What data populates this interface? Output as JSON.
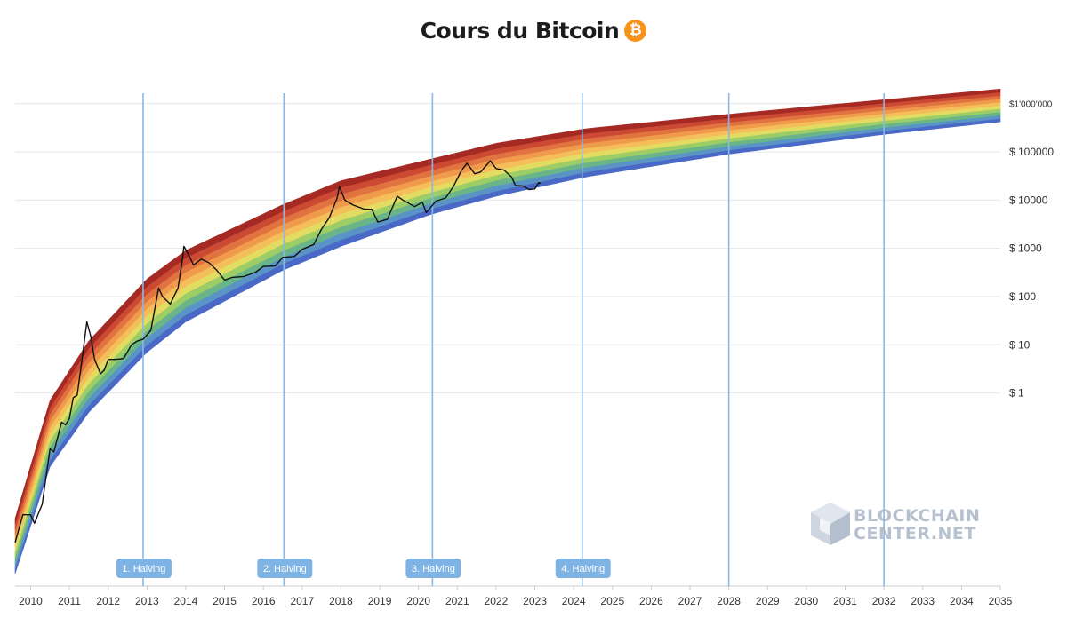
{
  "header": {
    "title": "Cours du Bitcoin",
    "icon": "bitcoin-icon",
    "icon_glyph": "₿"
  },
  "watermark": {
    "line1": "BLOCKCHAIN",
    "line2": "CENTER.NET",
    "icon": "cube-logo-icon"
  },
  "colors": {
    "bands": [
      "#4a68c6",
      "#5a94c7",
      "#69b489",
      "#9ccd66",
      "#e3dc62",
      "#f4bf5b",
      "#f09a4b",
      "#e07340",
      "#cc4a34",
      "#a52a23"
    ],
    "halving_line": "#8ab8e6",
    "price_line": "#111111",
    "grid": "#e6e6e6"
  },
  "chart_data": {
    "type": "area",
    "title": "Cours du Bitcoin",
    "xlabel": "",
    "ylabel": "",
    "y_scale": "log",
    "xlim": [
      2009.6,
      2035.0
    ],
    "ylim": [
      0.0001,
      2500000
    ],
    "x_ticks": [
      "2010",
      "2011",
      "2012",
      "2013",
      "2014",
      "2015",
      "2016",
      "2017",
      "2018",
      "2019",
      "2020",
      "2021",
      "2022",
      "2023",
      "2024",
      "2025",
      "2026",
      "2027",
      "2028",
      "2029",
      "2030",
      "2031",
      "2032",
      "2033",
      "2034",
      "2035"
    ],
    "y_ticks": [
      {
        "value": 1000000,
        "label": "$1'000'000"
      },
      {
        "value": 100000,
        "label": "$ 100000"
      },
      {
        "value": 10000,
        "label": "$ 10000"
      },
      {
        "value": 1000,
        "label": "$ 1000"
      },
      {
        "value": 100,
        "label": "$ 100"
      },
      {
        "value": 10,
        "label": "$ 10"
      },
      {
        "value": 1,
        "label": "$ 1"
      }
    ],
    "rainbow": {
      "band_count": 10,
      "boundary_samples": [
        {
          "x": 2009.6,
          "lower": 0.00018,
          "upper": 0.0025
        },
        {
          "x": 2010.5,
          "lower": 0.03,
          "upper": 0.7
        },
        {
          "x": 2011.5,
          "lower": 0.4,
          "upper": 12
        },
        {
          "x": 2013.0,
          "lower": 7,
          "upper": 230
        },
        {
          "x": 2014.0,
          "lower": 30,
          "upper": 900
        },
        {
          "x": 2016.5,
          "lower": 350,
          "upper": 8000
        },
        {
          "x": 2018.0,
          "lower": 1100,
          "upper": 25000
        },
        {
          "x": 2020.3,
          "lower": 5000,
          "upper": 70000
        },
        {
          "x": 2022.0,
          "lower": 12000,
          "upper": 150000
        },
        {
          "x": 2024.3,
          "lower": 30000,
          "upper": 300000
        },
        {
          "x": 2028.0,
          "lower": 90000,
          "upper": 600000
        },
        {
          "x": 2032.0,
          "lower": 230000,
          "upper": 1200000
        },
        {
          "x": 2035.0,
          "lower": 420000,
          "upper": 2000000
        }
      ]
    },
    "series": [
      {
        "points": [
          [
            2009.6,
            0.0008
          ],
          [
            2009.8,
            0.003
          ],
          [
            2010.0,
            0.003
          ],
          [
            2010.1,
            0.002
          ],
          [
            2010.3,
            0.005
          ],
          [
            2010.5,
            0.07
          ],
          [
            2010.6,
            0.06
          ],
          [
            2010.8,
            0.25
          ],
          [
            2010.9,
            0.22
          ],
          [
            2011.0,
            0.3
          ],
          [
            2011.1,
            0.8
          ],
          [
            2011.2,
            0.9
          ],
          [
            2011.3,
            3.5
          ],
          [
            2011.45,
            30
          ],
          [
            2011.55,
            15
          ],
          [
            2011.65,
            5
          ],
          [
            2011.8,
            2.5
          ],
          [
            2011.9,
            3
          ],
          [
            2012.0,
            5
          ],
          [
            2012.2,
            5
          ],
          [
            2012.4,
            5.2
          ],
          [
            2012.6,
            10
          ],
          [
            2012.75,
            12
          ],
          [
            2012.9,
            13
          ],
          [
            2013.1,
            20
          ],
          [
            2013.3,
            150
          ],
          [
            2013.4,
            100
          ],
          [
            2013.6,
            70
          ],
          [
            2013.8,
            150
          ],
          [
            2013.9,
            500
          ],
          [
            2013.95,
            1100
          ],
          [
            2014.05,
            800
          ],
          [
            2014.2,
            450
          ],
          [
            2014.4,
            600
          ],
          [
            2014.6,
            500
          ],
          [
            2014.8,
            350
          ],
          [
            2015.0,
            220
          ],
          [
            2015.2,
            250
          ],
          [
            2015.5,
            260
          ],
          [
            2015.8,
            320
          ],
          [
            2016.0,
            420
          ],
          [
            2016.3,
            430
          ],
          [
            2016.5,
            650
          ],
          [
            2016.8,
            680
          ],
          [
            2017.0,
            950
          ],
          [
            2017.3,
            1200
          ],
          [
            2017.5,
            2500
          ],
          [
            2017.7,
            4300
          ],
          [
            2017.9,
            11000
          ],
          [
            2017.96,
            19000
          ],
          [
            2018.1,
            10000
          ],
          [
            2018.3,
            8000
          ],
          [
            2018.6,
            6500
          ],
          [
            2018.8,
            6400
          ],
          [
            2018.95,
            3500
          ],
          [
            2019.2,
            4000
          ],
          [
            2019.45,
            12000
          ],
          [
            2019.6,
            10000
          ],
          [
            2019.9,
            7300
          ],
          [
            2020.1,
            9000
          ],
          [
            2020.2,
            5500
          ],
          [
            2020.45,
            9500
          ],
          [
            2020.7,
            11000
          ],
          [
            2020.9,
            19000
          ],
          [
            2021.1,
            40000
          ],
          [
            2021.25,
            58000
          ],
          [
            2021.45,
            35000
          ],
          [
            2021.6,
            38000
          ],
          [
            2021.85,
            65000
          ],
          [
            2022.0,
            45000
          ],
          [
            2022.2,
            42000
          ],
          [
            2022.4,
            30000
          ],
          [
            2022.5,
            20000
          ],
          [
            2022.7,
            19500
          ],
          [
            2022.85,
            16500
          ],
          [
            2023.0,
            17000
          ],
          [
            2023.1,
            23000
          ],
          [
            2023.15,
            22000
          ]
        ]
      }
    ],
    "halvings": [
      {
        "x": 2012.9,
        "label": "1. Halving"
      },
      {
        "x": 2016.53,
        "label": "2. Halving"
      },
      {
        "x": 2020.36,
        "label": "3. Halving"
      },
      {
        "x": 2024.22,
        "label": "4. Halving"
      },
      {
        "x": 2028.0,
        "label": ""
      },
      {
        "x": 2032.0,
        "label": ""
      }
    ],
    "grid": true,
    "legend": "none"
  }
}
